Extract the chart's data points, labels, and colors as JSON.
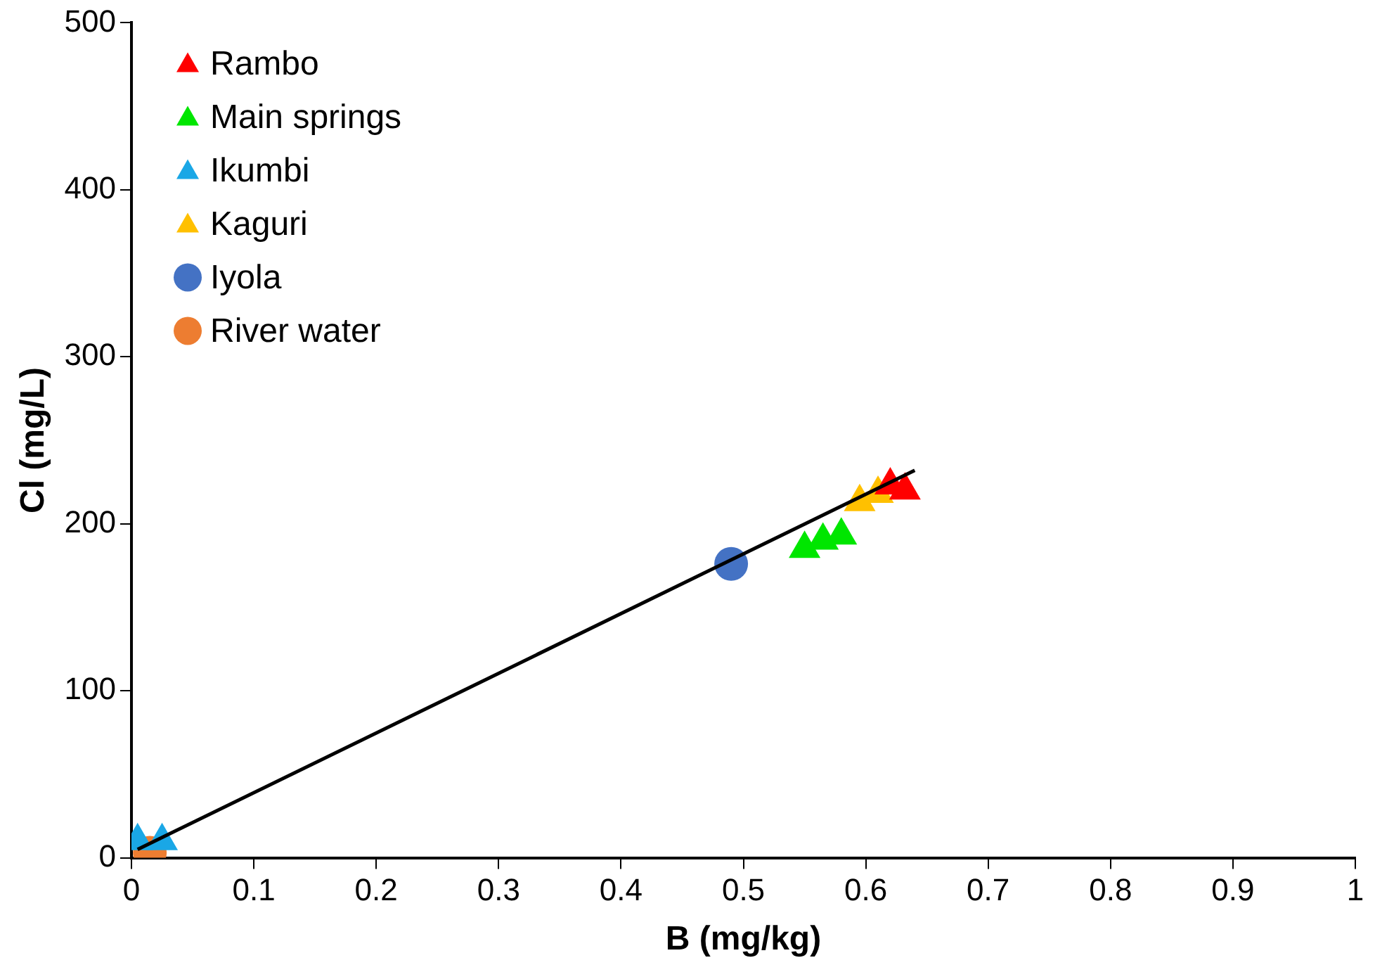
{
  "chart_data": {
    "type": "scatter",
    "xlabel": "B (mg/kg)",
    "ylabel": "Cl (mg/L)",
    "xlim": [
      0,
      1
    ],
    "xticks": [
      0,
      0.1,
      0.2,
      0.3,
      0.4,
      0.5,
      0.6,
      0.7,
      0.8,
      0.9,
      1
    ],
    "ylim": [
      0,
      500
    ],
    "yticks": [
      0,
      100,
      200,
      300,
      400,
      500
    ],
    "grid": false,
    "legend": "top left",
    "series": [
      {
        "name": "Rambo",
        "color": "#ff0000",
        "marker": "triangle",
        "x": [
          0.62,
          0.632
        ],
        "values": [
          223,
          220
        ]
      },
      {
        "name": "Main springs",
        "color": "#00e600",
        "marker": "triangle",
        "x": [
          0.55,
          0.565,
          0.58
        ],
        "values": [
          185,
          190,
          193
        ]
      },
      {
        "name": "Ikumbi",
        "color": "#1aa7e6",
        "marker": "triangle",
        "x": [
          0.005,
          0.025
        ],
        "values": [
          10,
          10
        ]
      },
      {
        "name": "Kaguri",
        "color": "#ffc000",
        "marker": "triangle",
        "x": [
          0.595,
          0.61
        ],
        "values": [
          213,
          218
        ]
      },
      {
        "name": "Iyola",
        "color": "#4472c4",
        "marker": "circle",
        "x": [
          0.49
        ],
        "values": [
          176
        ]
      },
      {
        "name": "River water",
        "color": "#ed7d31",
        "marker": "circle",
        "x": [
          0.015
        ],
        "values": [
          3
        ]
      },
      {
        "type": "line",
        "color": "#000000",
        "marker": "none",
        "x": [
          0.005,
          0.64
        ],
        "values": [
          5,
          232
        ]
      }
    ]
  }
}
